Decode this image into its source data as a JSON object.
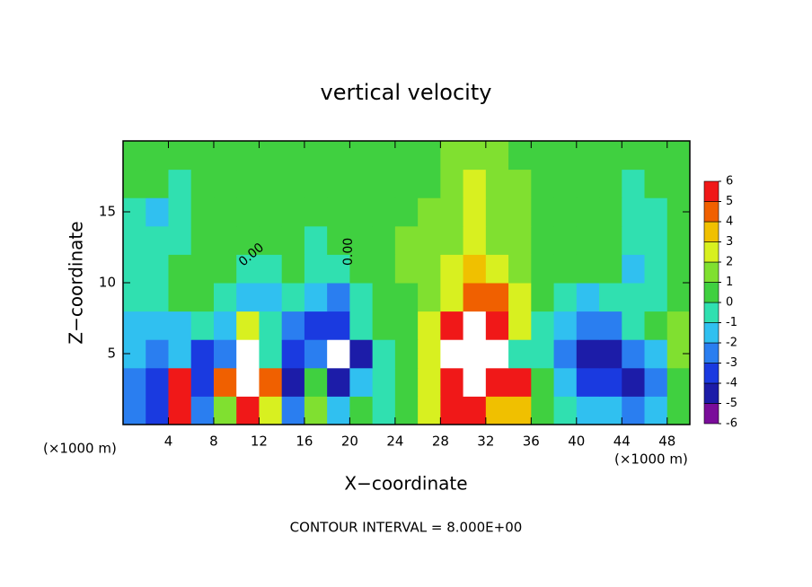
{
  "chart_data": {
    "type": "heatmap",
    "title": "vertical velocity",
    "x_label": "X−coordinate",
    "y_label": "Z−coordinate",
    "unit_labels": [
      "(×1000 m)",
      "(×1000 m)"
    ],
    "contour_labels": [
      "0.00",
      "0.00"
    ],
    "footer": "CONTOUR INTERVAL = 8.000E+00",
    "xlim": [
      0,
      50
    ],
    "ylim": [
      0,
      20
    ],
    "xticks": [
      4,
      8,
      12,
      16,
      20,
      24,
      28,
      32,
      36,
      40,
      44,
      48
    ],
    "yticks": [
      5,
      10,
      15
    ],
    "x": [
      1,
      3,
      5,
      7,
      9,
      11,
      13,
      15,
      17,
      19,
      21,
      23,
      25,
      27,
      29,
      31,
      33,
      35,
      37,
      39,
      41,
      43,
      45,
      47,
      49
    ],
    "y": [
      1,
      3,
      5,
      7,
      9,
      11,
      13,
      15,
      17,
      19
    ],
    "z": [
      [
        -3,
        -4,
        5,
        -3,
        1,
        5,
        2,
        -3,
        1,
        -2,
        0,
        -1,
        0,
        2,
        5,
        6,
        3,
        3,
        0,
        -1,
        -2,
        -2,
        -3,
        -2,
        0
      ],
      [
        -3,
        -4,
        5,
        -4,
        4,
        7,
        4,
        -5,
        0,
        -5,
        -2,
        -1,
        0,
        2,
        6,
        9,
        5,
        5,
        0,
        -2,
        -4,
        -4,
        -5,
        -3,
        0
      ],
      [
        -2,
        -3,
        -2,
        -4,
        -3,
        7,
        -1,
        -4,
        -3,
        7,
        -5,
        -1,
        0,
        2,
        7,
        8,
        7,
        -1,
        -1,
        -3,
        -5,
        -5,
        -3,
        -2,
        1
      ],
      [
        -2,
        -2,
        -1.5,
        -1,
        -2,
        2,
        -1,
        -3,
        -4,
        -4,
        -1,
        0,
        0,
        2,
        5,
        8,
        5,
        2,
        -1,
        -2,
        -3,
        -3,
        -1,
        0,
        1
      ],
      [
        -1,
        -1,
        0,
        0,
        -1,
        -2,
        -1.5,
        -1,
        -2,
        -3,
        -1,
        0,
        0.5,
        1,
        2,
        4,
        4,
        2,
        0,
        -1,
        -1.5,
        -1,
        -1,
        -0.5,
        0
      ],
      [
        -0.5,
        -1,
        0,
        0,
        0,
        -1,
        -1,
        0,
        -1,
        -1,
        0,
        0.5,
        1,
        1,
        2,
        3,
        2,
        1,
        0.5,
        0,
        0,
        0,
        -1.5,
        -1,
        0
      ],
      [
        -0.5,
        -1,
        -0.5,
        0,
        0,
        0,
        0,
        0,
        -0.5,
        0,
        0,
        0.5,
        1,
        1,
        1.5,
        2,
        1.5,
        1,
        0.5,
        0,
        0,
        0,
        -1,
        -1,
        0
      ],
      [
        -1,
        -1.5,
        -1,
        0,
        0,
        0,
        0,
        0,
        0,
        0,
        0,
        0.5,
        0.5,
        1,
        1.5,
        2,
        1.5,
        1,
        0.5,
        0,
        0,
        0,
        -1,
        -1,
        0
      ],
      [
        0,
        0,
        -1,
        0,
        0,
        0,
        0,
        0,
        0,
        0,
        0,
        0.5,
        0.5,
        0.5,
        1,
        2,
        1.5,
        1,
        0.5,
        0,
        0,
        0,
        -0.5,
        0,
        0
      ],
      [
        0,
        0.5,
        0.5,
        0.5,
        0,
        0,
        0,
        0,
        0,
        0.5,
        0.5,
        0.5,
        0.5,
        0.5,
        1,
        1.5,
        1,
        0.5,
        0.5,
        0,
        0,
        0,
        0,
        0,
        0
      ]
    ],
    "colorbar_ticks": [
      -6,
      -5,
      -4,
      -3,
      -2,
      -1,
      0,
      1,
      2,
      3,
      4,
      5,
      6
    ],
    "colors": [
      "#7a0d9a",
      "#1c1ca8",
      "#1a3ae0",
      "#2a7ef0",
      "#30c0f0",
      "#30e0b0",
      "#40d040",
      "#80e030",
      "#d8f020",
      "#f0c000",
      "#f06000",
      "#f01818"
    ],
    "over_color": "#ffffff"
  }
}
